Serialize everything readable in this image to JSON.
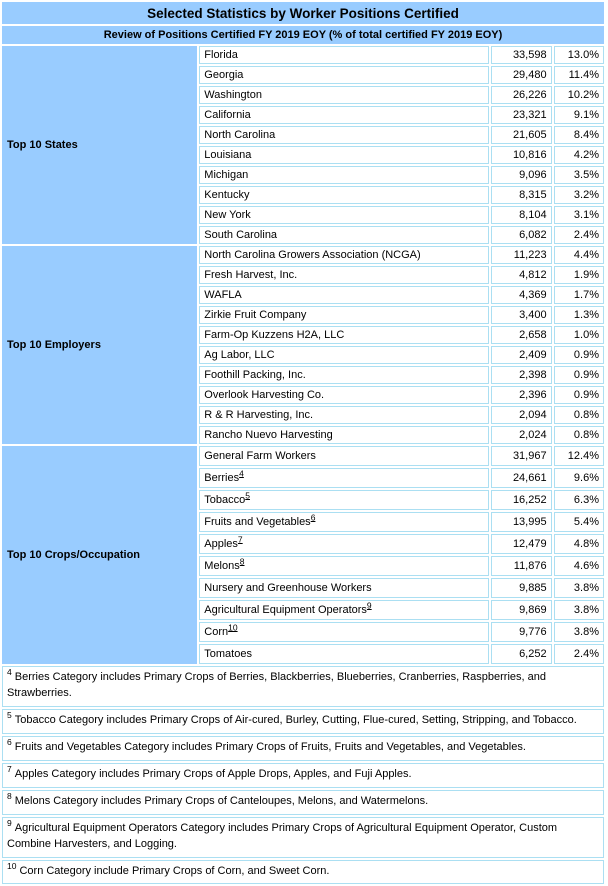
{
  "title": "Selected Statistics by Worker Positions Certified",
  "subtitle": "Review of Positions Certified FY 2019 EOY (% of total certified FY 2019 EOY)",
  "colors": {
    "header_bg": "#99CCFF",
    "cell_border": "#ABDFF2",
    "text": "#000000",
    "cell_bg": "#FFFFFF"
  },
  "sections": [
    {
      "label": "Top 10 States",
      "rows": [
        {
          "name": "Florida",
          "sup": "",
          "count": "33,598",
          "pct": "13.0%"
        },
        {
          "name": "Georgia",
          "sup": "",
          "count": "29,480",
          "pct": "11.4%"
        },
        {
          "name": "Washington",
          "sup": "",
          "count": "26,226",
          "pct": "10.2%"
        },
        {
          "name": "California",
          "sup": "",
          "count": "23,321",
          "pct": "9.1%"
        },
        {
          "name": "North Carolina",
          "sup": "",
          "count": "21,605",
          "pct": "8.4%"
        },
        {
          "name": "Louisiana",
          "sup": "",
          "count": "10,816",
          "pct": "4.2%"
        },
        {
          "name": "Michigan",
          "sup": "",
          "count": "9,096",
          "pct": "3.5%"
        },
        {
          "name": "Kentucky",
          "sup": "",
          "count": "8,315",
          "pct": "3.2%"
        },
        {
          "name": "New York",
          "sup": "",
          "count": "8,104",
          "pct": "3.1%"
        },
        {
          "name": "South Carolina",
          "sup": "",
          "count": "6,082",
          "pct": "2.4%"
        }
      ]
    },
    {
      "label": "Top 10 Employers",
      "rows": [
        {
          "name": "North Carolina Growers Association (NCGA)",
          "sup": "",
          "count": "11,223",
          "pct": "4.4%"
        },
        {
          "name": "Fresh Harvest, Inc.",
          "sup": "",
          "count": "4,812",
          "pct": "1.9%"
        },
        {
          "name": "WAFLA",
          "sup": "",
          "count": "4,369",
          "pct": "1.7%"
        },
        {
          "name": "Zirkie Fruit Company",
          "sup": "",
          "count": "3,400",
          "pct": "1.3%"
        },
        {
          "name": "Farm-Op Kuzzens H2A, LLC",
          "sup": "",
          "count": "2,658",
          "pct": "1.0%"
        },
        {
          "name": "Ag Labor, LLC",
          "sup": "",
          "count": "2,409",
          "pct": "0.9%"
        },
        {
          "name": "Foothill Packing, Inc.",
          "sup": "",
          "count": "2,398",
          "pct": "0.9%"
        },
        {
          "name": "Overlook Harvesting Co.",
          "sup": "",
          "count": "2,396",
          "pct": "0.9%"
        },
        {
          "name": "R & R Harvesting, Inc.",
          "sup": "",
          "count": "2,094",
          "pct": "0.8%"
        },
        {
          "name": "Rancho Nuevo Harvesting",
          "sup": "",
          "count": "2,024",
          "pct": "0.8%"
        }
      ]
    },
    {
      "label": "Top 10 Crops/Occupation",
      "rows": [
        {
          "name": "General Farm Workers",
          "sup": "",
          "count": "31,967",
          "pct": "12.4%"
        },
        {
          "name": "Berries",
          "sup": "4",
          "count": "24,661",
          "pct": "9.6%"
        },
        {
          "name": "Tobacco",
          "sup": "5",
          "count": "16,252",
          "pct": "6.3%"
        },
        {
          "name": "Fruits and Vegetables",
          "sup": "6",
          "count": "13,995",
          "pct": "5.4%"
        },
        {
          "name": "Apples",
          "sup": "7",
          "count": "12,479",
          "pct": "4.8%"
        },
        {
          "name": "Melons",
          "sup": "8",
          "count": "11,876",
          "pct": "4.6%"
        },
        {
          "name": "Nursery and Greenhouse Workers",
          "sup": "",
          "count": "9,885",
          "pct": "3.8%"
        },
        {
          "name": "Agricultural Equipment Operators",
          "sup": "9",
          "count": "9,869",
          "pct": "3.8%"
        },
        {
          "name": "Corn",
          "sup": "10",
          "count": "9,776",
          "pct": "3.8%"
        },
        {
          "name": "Tomatoes",
          "sup": "",
          "count": "6,252",
          "pct": "2.4%"
        }
      ]
    }
  ],
  "footnotes": [
    {
      "sup": "4",
      "text": "Berries Category includes Primary Crops of Berries, Blackberries, Blueberries, Cranberries, Raspberries, and Strawberries."
    },
    {
      "sup": "5",
      "text": "Tobacco Category includes Primary Crops of Air-cured, Burley, Cutting, Flue-cured, Setting, Stripping, and Tobacco."
    },
    {
      "sup": "6",
      "text": "Fruits and Vegetables Category includes Primary Crops of Fruits, Fruits and Vegetables, and Vegetables."
    },
    {
      "sup": "7",
      "text": "Apples Category includes Primary Crops of Apple Drops, Apples, and Fuji Apples."
    },
    {
      "sup": "8",
      "text": "Melons Category includes Primary Crops of Canteloupes, Melons, and Watermelons."
    },
    {
      "sup": "9",
      "text": "Agricultural Equipment Operators Category includes Primary Crops of Agricultural Equipment Operator, Custom Combine Harvesters, and Logging."
    },
    {
      "sup": "10",
      "text": "Corn Category include Primary Crops of Corn, and Sweet Corn."
    }
  ]
}
